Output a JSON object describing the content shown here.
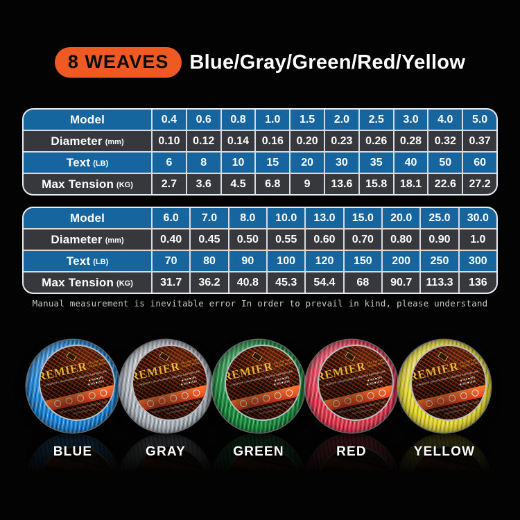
{
  "header": {
    "badge": "8 WEAVES",
    "colors_label": "Blue/Gray/Green/Red/Yellow"
  },
  "colors": {
    "accent_orange": "#EF5A22",
    "table_blue": "#17659E",
    "table_dark": "#36383B",
    "grid_line": "#D8DCE0",
    "background": "#030303"
  },
  "tables": [
    {
      "rows": [
        {
          "label": "Model",
          "unit": "",
          "style": "blue",
          "values": [
            "0.4",
            "0.6",
            "0.8",
            "1.0",
            "1.5",
            "2.0",
            "2.5",
            "3.0",
            "4.0",
            "5.0"
          ]
        },
        {
          "label": "Diameter",
          "unit": "(mm)",
          "style": "dark",
          "values": [
            "0.10",
            "0.12",
            "0.14",
            "0.16",
            "0.20",
            "0.23",
            "0.26",
            "0.28",
            "0.32",
            "0.37"
          ]
        },
        {
          "label": "Text",
          "unit": "(LB)",
          "style": "blue",
          "values": [
            "6",
            "8",
            "10",
            "15",
            "20",
            "30",
            "35",
            "40",
            "50",
            "60"
          ]
        },
        {
          "label": "Max Tension",
          "unit": "(KG)",
          "style": "dark",
          "values": [
            "2.7",
            "3.6",
            "4.5",
            "6.8",
            "9",
            "13.6",
            "15.8",
            "18.1",
            "22.6",
            "27.2"
          ]
        }
      ]
    },
    {
      "rows": [
        {
          "label": "Model",
          "unit": "",
          "style": "blue",
          "values": [
            "6.0",
            "7.0",
            "8.0",
            "10.0",
            "13.0",
            "15.0",
            "20.0",
            "25.0",
            "30.0"
          ]
        },
        {
          "label": "Diameter",
          "unit": "(mm)",
          "style": "dark",
          "values": [
            "0.40",
            "0.45",
            "0.50",
            "0.55",
            "0.60",
            "0.70",
            "0.80",
            "0.90",
            "1.0"
          ]
        },
        {
          "label": "Text",
          "unit": "(LB)",
          "style": "blue",
          "values": [
            "70",
            "80",
            "90",
            "100",
            "120",
            "150",
            "200",
            "250",
            "300"
          ]
        },
        {
          "label": "Max Tension",
          "unit": "(KG)",
          "style": "dark",
          "values": [
            "31.7",
            "36.2",
            "40.8",
            "45.3",
            "54.4",
            "68",
            "90.7",
            "113.3",
            "136"
          ]
        }
      ]
    }
  ],
  "note": "Manual measurement is inevitable error In order to prevail in kind, please understand",
  "spool_label": {
    "brand": "PREMIER",
    "brand_side_1": "PE LINE FIBER",
    "brand_side_2": "FRESH BRAID",
    "tagline": "U-WRAPPE / MICROFIBERS / SMOOTH CASTING LINE",
    "wmarks_1": "■ W4 ■ W8",
    "wmarks_2": "■ W9 ■ W16",
    "company": "PROGRESSIVE FISHING TACKLE CO., LTD",
    "website": "WWW.PREMIER.COM"
  },
  "spools": [
    {
      "name": "BLUE",
      "line": "#1E86D8",
      "line_dark": "#0B4E8E",
      "line_light": "#7AC4F2"
    },
    {
      "name": "GRAY",
      "line": "#AEB4BB",
      "line_dark": "#6F757D",
      "line_light": "#E2E6EA"
    },
    {
      "name": "GREEN",
      "line": "#1F8F42",
      "line_dark": "#0C5424",
      "line_light": "#66C985"
    },
    {
      "name": "RED",
      "line": "#E63C52",
      "line_dark": "#9E1628",
      "line_light": "#F58CA0"
    },
    {
      "name": "YELLOW",
      "line": "#E3D531",
      "line_dark": "#A89B0E",
      "line_light": "#F5EF8A"
    }
  ]
}
